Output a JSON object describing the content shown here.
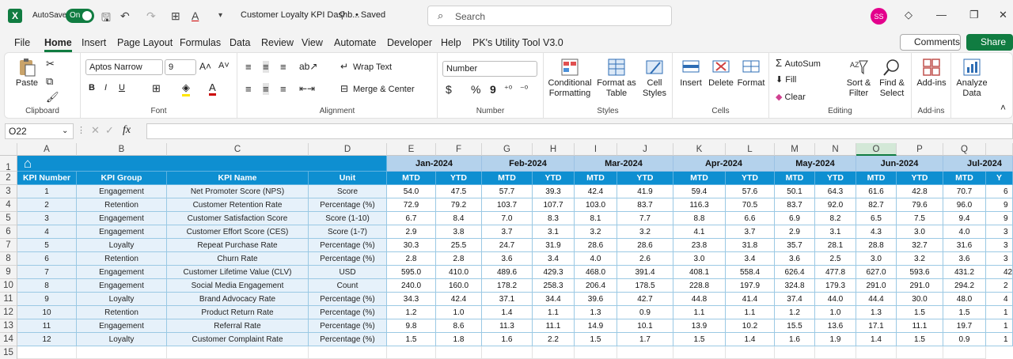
{
  "app": {
    "autosave_label": "AutoSave",
    "autosave_state": "On",
    "doc_title": "Customer Loyalty KPI Dashb...",
    "saved_label": "• Saved",
    "search_placeholder": "Search",
    "user_initials": "SS"
  },
  "menu": {
    "items": [
      "File",
      "Home",
      "Insert",
      "Page Layout",
      "Formulas",
      "Data",
      "Review",
      "View",
      "Automate",
      "Developer",
      "Help",
      "PK's Utility Tool V3.0"
    ],
    "active": "Home",
    "comments": "Comments",
    "share": "Share"
  },
  "ribbon": {
    "clipboard": {
      "label": "Clipboard",
      "paste": "Paste"
    },
    "font": {
      "label": "Font",
      "name": "Aptos Narrow",
      "size": "9"
    },
    "alignment": {
      "label": "Alignment",
      "wrap": "Wrap Text",
      "merge": "Merge & Center"
    },
    "number": {
      "label": "Number",
      "format": "Number"
    },
    "styles": {
      "label": "Styles",
      "conditional": "Conditional",
      "formatting": "Formatting",
      "format_as": "Format as",
      "table": "Table",
      "cell": "Cell",
      "cell_styles": "Styles"
    },
    "cells": {
      "label": "Cells",
      "insert": "Insert",
      "delete": "Delete",
      "format": "Format"
    },
    "editing": {
      "label": "Editing",
      "autosum": "AutoSum",
      "fill": "Fill",
      "clear": "Clear",
      "sort": "Sort &",
      "filter": "Filter",
      "find": "Find &",
      "select": "Select"
    },
    "addins": {
      "label": "Add-ins",
      "addins": "Add-ins"
    },
    "analyze": {
      "line1": "Analyze",
      "line2": "Data"
    }
  },
  "formula_bar": {
    "name_box": "O22",
    "fx": "fx",
    "value": ""
  },
  "columns": [
    "A",
    "B",
    "C",
    "D",
    "E",
    "F",
    "G",
    "H",
    "I",
    "J",
    "K",
    "L",
    "M",
    "N",
    "O",
    "P",
    "Q"
  ],
  "rows": [
    "1",
    "2",
    "3",
    "4",
    "5",
    "6",
    "7",
    "8",
    "9",
    "10",
    "11",
    "12",
    "13",
    "14",
    "15"
  ],
  "headers": [
    "KPI Number",
    "KPI Group",
    "KPI Name",
    "Unit"
  ],
  "months": [
    "Jan-2024",
    "Feb-2024",
    "Mar-2024",
    "Apr-2024",
    "May-2024",
    "Jun-2024",
    "Jul-2024"
  ],
  "sub_headers": [
    "MTD",
    "YTD"
  ],
  "kpis": [
    {
      "num": "1",
      "group": "Engagement",
      "name": "Net Promoter Score (NPS)",
      "unit": "Score",
      "values": [
        "54.0",
        "47.5",
        "57.7",
        "39.3",
        "42.4",
        "41.9",
        "59.4",
        "57.6",
        "50.1",
        "64.3",
        "61.6",
        "42.8",
        "70.7",
        "6"
      ]
    },
    {
      "num": "2",
      "group": "Retention",
      "name": "Customer Retention Rate",
      "unit": "Percentage (%)",
      "values": [
        "72.9",
        "79.2",
        "103.7",
        "107.7",
        "103.0",
        "83.7",
        "116.3",
        "70.5",
        "83.7",
        "92.0",
        "82.7",
        "79.6",
        "96.0",
        "9"
      ]
    },
    {
      "num": "3",
      "group": "Engagement",
      "name": "Customer Satisfaction Score",
      "unit": "Score (1-10)",
      "values": [
        "6.7",
        "8.4",
        "7.0",
        "8.3",
        "8.1",
        "7.7",
        "8.8",
        "6.6",
        "6.9",
        "8.2",
        "6.5",
        "7.5",
        "9.4",
        "9"
      ]
    },
    {
      "num": "4",
      "group": "Engagement",
      "name": "Customer Effort Score (CES)",
      "unit": "Score (1-7)",
      "values": [
        "2.9",
        "3.8",
        "3.7",
        "3.1",
        "3.2",
        "3.2",
        "4.1",
        "3.7",
        "2.9",
        "3.1",
        "4.3",
        "3.0",
        "4.0",
        "3"
      ]
    },
    {
      "num": "5",
      "group": "Loyalty",
      "name": "Repeat Purchase Rate",
      "unit": "Percentage (%)",
      "values": [
        "30.3",
        "25.5",
        "24.7",
        "31.9",
        "28.6",
        "28.6",
        "23.8",
        "31.8",
        "35.7",
        "28.1",
        "28.8",
        "32.7",
        "31.6",
        "3"
      ]
    },
    {
      "num": "6",
      "group": "Retention",
      "name": "Churn Rate",
      "unit": "Percentage (%)",
      "values": [
        "2.8",
        "2.8",
        "3.6",
        "3.4",
        "4.0",
        "2.6",
        "3.0",
        "3.4",
        "3.6",
        "2.5",
        "3.0",
        "3.2",
        "3.6",
        "3"
      ]
    },
    {
      "num": "7",
      "group": "Engagement",
      "name": "Customer Lifetime Value (CLV)",
      "unit": "USD",
      "values": [
        "595.0",
        "410.0",
        "489.6",
        "429.3",
        "468.0",
        "391.4",
        "408.1",
        "558.4",
        "626.4",
        "477.8",
        "627.0",
        "593.6",
        "431.2",
        "42"
      ]
    },
    {
      "num": "8",
      "group": "Engagement",
      "name": "Social Media Engagement",
      "unit": "Count",
      "values": [
        "240.0",
        "160.0",
        "178.2",
        "258.3",
        "206.4",
        "178.5",
        "228.8",
        "197.9",
        "324.8",
        "179.3",
        "291.0",
        "291.0",
        "294.2",
        "2"
      ]
    },
    {
      "num": "9",
      "group": "Loyalty",
      "name": "Brand Advocacy Rate",
      "unit": "Percentage (%)",
      "values": [
        "34.3",
        "42.4",
        "37.1",
        "34.4",
        "39.6",
        "42.7",
        "44.8",
        "41.4",
        "37.4",
        "44.0",
        "44.4",
        "30.0",
        "48.0",
        "4"
      ]
    },
    {
      "num": "10",
      "group": "Retention",
      "name": "Product Return Rate",
      "unit": "Percentage (%)",
      "values": [
        "1.2",
        "1.0",
        "1.4",
        "1.1",
        "1.3",
        "0.9",
        "1.1",
        "1.1",
        "1.2",
        "1.0",
        "1.3",
        "1.5",
        "1.5",
        "1"
      ]
    },
    {
      "num": "11",
      "group": "Engagement",
      "name": "Referral Rate",
      "unit": "Percentage (%)",
      "values": [
        "9.8",
        "8.6",
        "11.3",
        "11.1",
        "14.9",
        "10.1",
        "13.9",
        "10.2",
        "15.5",
        "13.6",
        "17.1",
        "11.1",
        "19.7",
        "1"
      ]
    },
    {
      "num": "12",
      "group": "Loyalty",
      "name": "Customer Complaint Rate",
      "unit": "Percentage (%)",
      "values": [
        "1.5",
        "1.8",
        "1.6",
        "2.2",
        "1.5",
        "1.7",
        "1.5",
        "1.4",
        "1.6",
        "1.9",
        "1.4",
        "1.5",
        "0.9",
        "1"
      ]
    }
  ]
}
